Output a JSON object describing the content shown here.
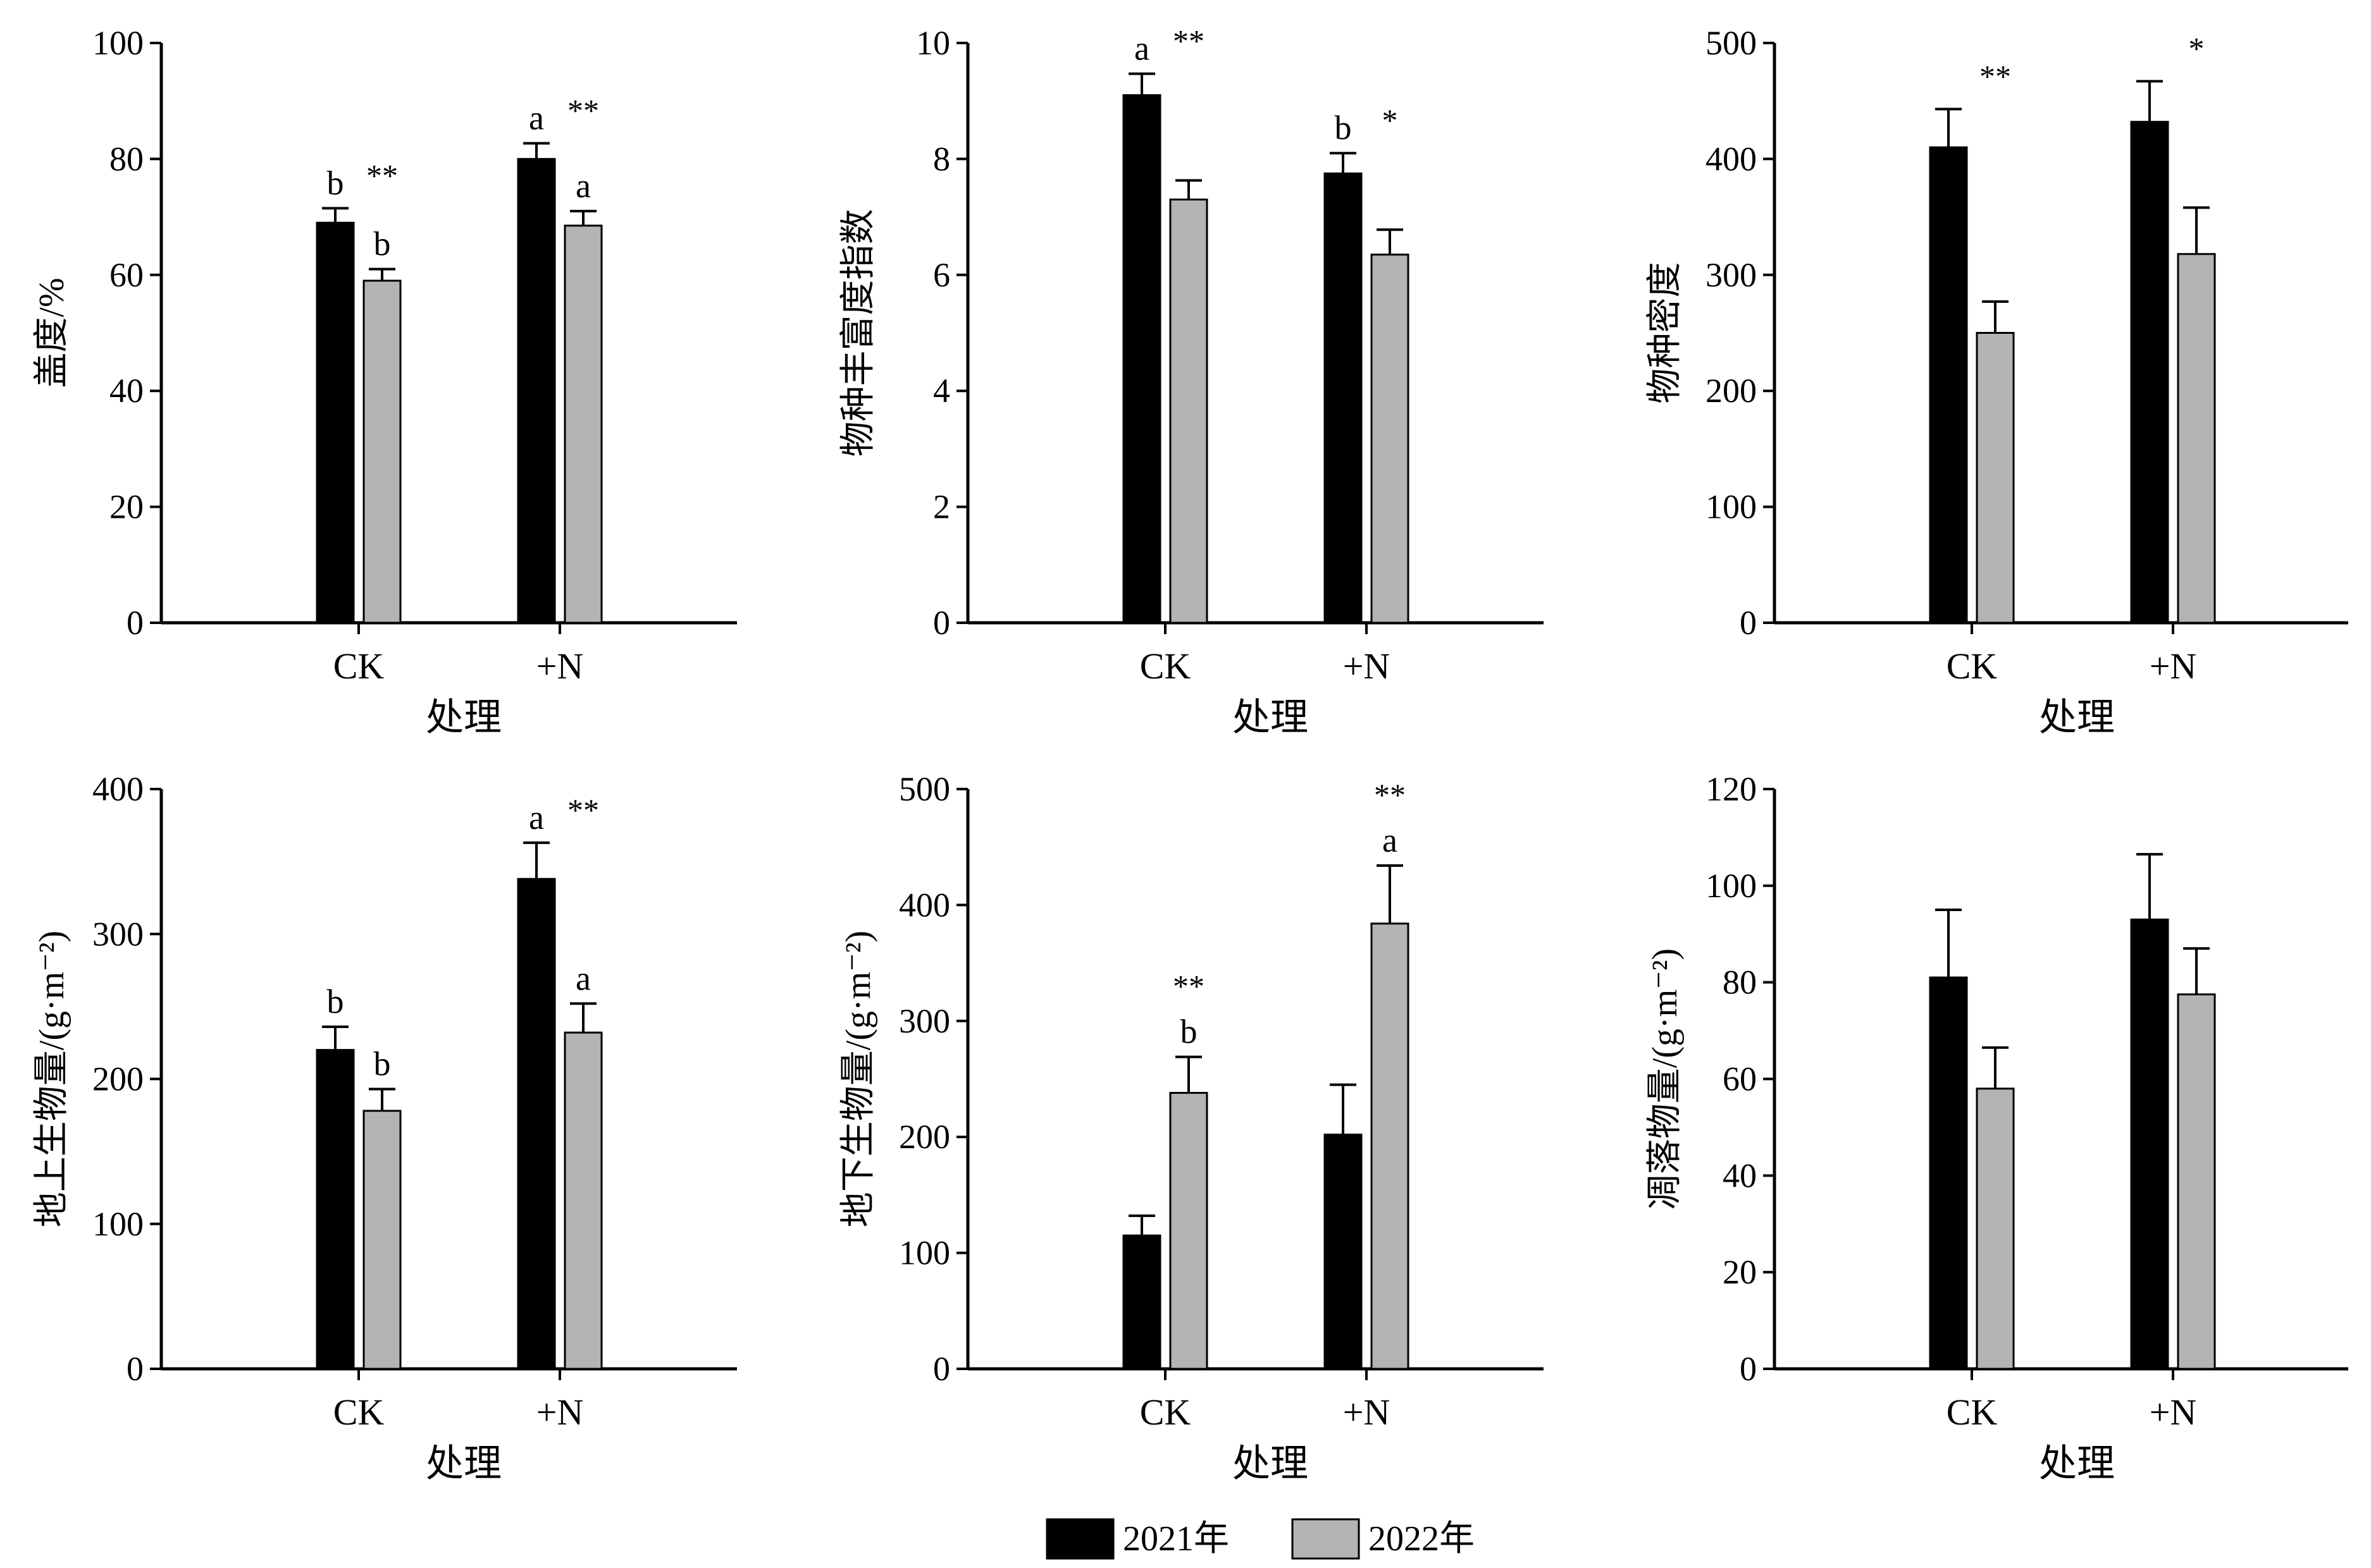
{
  "colors": {
    "series_2021": "#000000",
    "series_2022": "#b4b4b4",
    "axis": "#000000"
  },
  "legend": {
    "items": [
      "2021年",
      "2022年"
    ]
  },
  "chart_data": [
    {
      "type": "bar",
      "title": "",
      "categories": [
        "CK",
        "+N"
      ],
      "xlabel": "处理",
      "ylabel": "盖度/%",
      "ylim": [
        0,
        100
      ],
      "yticks": [
        0,
        20,
        40,
        60,
        80,
        100
      ],
      "series": [
        {
          "name": "2021年",
          "values": [
            69,
            80
          ],
          "errors": [
            2.5,
            2.7
          ],
          "letters": [
            "b",
            "a"
          ]
        },
        {
          "name": "2022年",
          "values": [
            59,
            68.5
          ],
          "errors": [
            2,
            2.5
          ],
          "letters": [
            "b",
            "a"
          ]
        }
      ],
      "significance": [
        "**",
        "**"
      ]
    },
    {
      "type": "bar",
      "title": "",
      "categories": [
        "CK",
        "+N"
      ],
      "xlabel": "处理",
      "ylabel": "物种丰富度指数",
      "ylim": [
        0,
        10
      ],
      "yticks": [
        0,
        2,
        4,
        6,
        8,
        10
      ],
      "series": [
        {
          "name": "2021年",
          "values": [
            9.1,
            7.75
          ],
          "errors": [
            0.37,
            0.35
          ],
          "letters": [
            "a",
            "b"
          ]
        },
        {
          "name": "2022年",
          "values": [
            7.3,
            6.35
          ],
          "errors": [
            0.33,
            0.43
          ],
          "letters": [
            "",
            ""
          ]
        }
      ],
      "significance": [
        "**",
        "*"
      ]
    },
    {
      "type": "bar",
      "title": "",
      "categories": [
        "CK",
        "+N"
      ],
      "xlabel": "处理",
      "ylabel": "物种密度",
      "ylim": [
        0,
        500
      ],
      "yticks": [
        0,
        100,
        200,
        300,
        400,
        500
      ],
      "series": [
        {
          "name": "2021年",
          "values": [
            410,
            432
          ],
          "errors": [
            33,
            35
          ],
          "letters": [
            "",
            ""
          ]
        },
        {
          "name": "2022年",
          "values": [
            250,
            318
          ],
          "errors": [
            27,
            40
          ],
          "letters": [
            "",
            ""
          ]
        }
      ],
      "significance": [
        "**",
        "*"
      ]
    },
    {
      "type": "bar",
      "title": "",
      "categories": [
        "CK",
        "+N"
      ],
      "xlabel": "处理",
      "ylabel": "地上生物量/(g·m⁻²)",
      "ylim": [
        0,
        400
      ],
      "yticks": [
        0,
        100,
        200,
        300,
        400
      ],
      "series": [
        {
          "name": "2021年",
          "values": [
            220,
            338
          ],
          "errors": [
            16,
            25
          ],
          "letters": [
            "b",
            "a"
          ]
        },
        {
          "name": "2022年",
          "values": [
            178,
            232
          ],
          "errors": [
            15,
            20
          ],
          "letters": [
            "b",
            "a"
          ]
        }
      ],
      "significance": [
        "",
        "**"
      ]
    },
    {
      "type": "bar",
      "title": "",
      "categories": [
        "CK",
        "+N"
      ],
      "xlabel": "处理",
      "ylabel": "地下生物量/(g·m⁻²)",
      "ylim": [
        0,
        500
      ],
      "yticks": [
        0,
        100,
        200,
        300,
        400,
        500
      ],
      "series": [
        {
          "name": "2021年",
          "values": [
            115,
            202
          ],
          "errors": [
            17,
            43
          ],
          "letters": [
            "",
            ""
          ]
        },
        {
          "name": "2022年",
          "values": [
            238,
            384
          ],
          "errors": [
            31,
            50
          ],
          "letters": [
            "b",
            "a"
          ]
        }
      ],
      "significance": [
        "**",
        "**"
      ]
    },
    {
      "type": "bar",
      "title": "",
      "categories": [
        "CK",
        "+N"
      ],
      "xlabel": "处理",
      "ylabel": "凋落物量/(g·m⁻²)",
      "ylim": [
        0,
        120
      ],
      "yticks": [
        0,
        20,
        40,
        60,
        80,
        100,
        120
      ],
      "series": [
        {
          "name": "2021年",
          "values": [
            81,
            93
          ],
          "errors": [
            14,
            13.5
          ],
          "letters": [
            "",
            ""
          ]
        },
        {
          "name": "2022年",
          "values": [
            58,
            77.5
          ],
          "errors": [
            8.5,
            9.5
          ],
          "letters": [
            "",
            ""
          ]
        }
      ],
      "significance": [
        "",
        ""
      ]
    }
  ]
}
